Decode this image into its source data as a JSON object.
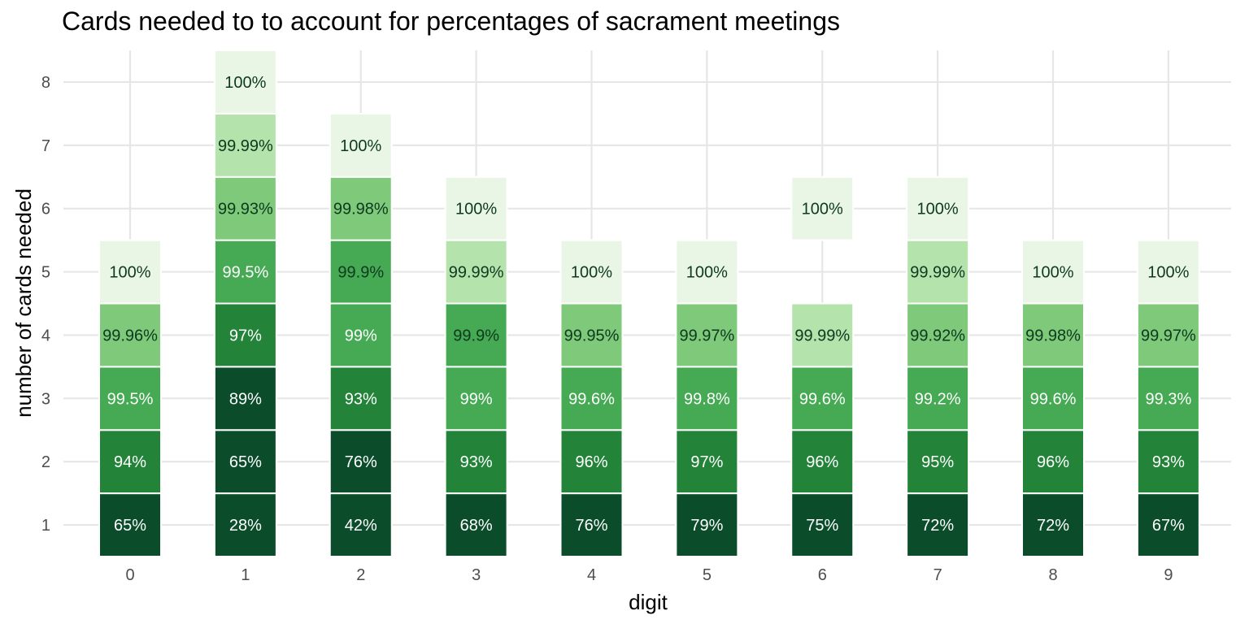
{
  "chart_data": {
    "type": "heatmap",
    "title": "Cards needed to to account for percentages of sacrament meetings",
    "xlabel": "digit",
    "ylabel": "number of cards needed",
    "x_categories": [
      "0",
      "1",
      "2",
      "3",
      "4",
      "5",
      "6",
      "7",
      "8",
      "9"
    ],
    "y_ticks": [
      1,
      2,
      3,
      4,
      5,
      6,
      7,
      8
    ],
    "ylim": [
      0.5,
      8.5
    ],
    "grid": true,
    "legend": "none",
    "colors": {
      "darkest": "#0b4d2a",
      "dark": "#238439",
      "mid": "#45aa53",
      "light": "#7ec97a",
      "lighter": "#b4e3ac",
      "lightest": "#eaf6e5",
      "text_on_dark": "#ffffff",
      "text_on_light": "#0d3a1f"
    },
    "cells": [
      {
        "digit": "0",
        "cards": 1,
        "label": "65%",
        "value": 65
      },
      {
        "digit": "0",
        "cards": 2,
        "label": "94%",
        "value": 94
      },
      {
        "digit": "0",
        "cards": 3,
        "label": "99.5%",
        "value": 99.5
      },
      {
        "digit": "0",
        "cards": 4,
        "label": "99.96%",
        "value": 99.96
      },
      {
        "digit": "0",
        "cards": 5,
        "label": "100%",
        "value": 100
      },
      {
        "digit": "1",
        "cards": 1,
        "label": "28%",
        "value": 28
      },
      {
        "digit": "1",
        "cards": 2,
        "label": "65%",
        "value": 65
      },
      {
        "digit": "1",
        "cards": 3,
        "label": "89%",
        "value": 89
      },
      {
        "digit": "1",
        "cards": 4,
        "label": "97%",
        "value": 97
      },
      {
        "digit": "1",
        "cards": 5,
        "label": "99.5%",
        "value": 99.5
      },
      {
        "digit": "1",
        "cards": 6,
        "label": "99.93%",
        "value": 99.93
      },
      {
        "digit": "1",
        "cards": 7,
        "label": "99.99%",
        "value": 99.99
      },
      {
        "digit": "1",
        "cards": 8,
        "label": "100%",
        "value": 100
      },
      {
        "digit": "2",
        "cards": 1,
        "label": "42%",
        "value": 42
      },
      {
        "digit": "2",
        "cards": 2,
        "label": "76%",
        "value": 76
      },
      {
        "digit": "2",
        "cards": 3,
        "label": "93%",
        "value": 93
      },
      {
        "digit": "2",
        "cards": 4,
        "label": "99%",
        "value": 99
      },
      {
        "digit": "2",
        "cards": 5,
        "label": "99.9%",
        "value": 99.9
      },
      {
        "digit": "2",
        "cards": 6,
        "label": "99.98%",
        "value": 99.98
      },
      {
        "digit": "2",
        "cards": 7,
        "label": "100%",
        "value": 100
      },
      {
        "digit": "3",
        "cards": 1,
        "label": "68%",
        "value": 68
      },
      {
        "digit": "3",
        "cards": 2,
        "label": "93%",
        "value": 93
      },
      {
        "digit": "3",
        "cards": 3,
        "label": "99%",
        "value": 99
      },
      {
        "digit": "3",
        "cards": 4,
        "label": "99.9%",
        "value": 99.9
      },
      {
        "digit": "3",
        "cards": 5,
        "label": "99.99%",
        "value": 99.99
      },
      {
        "digit": "3",
        "cards": 6,
        "label": "100%",
        "value": 100
      },
      {
        "digit": "4",
        "cards": 1,
        "label": "76%",
        "value": 76
      },
      {
        "digit": "4",
        "cards": 2,
        "label": "96%",
        "value": 96
      },
      {
        "digit": "4",
        "cards": 3,
        "label": "99.6%",
        "value": 99.6
      },
      {
        "digit": "4",
        "cards": 4,
        "label": "99.95%",
        "value": 99.95
      },
      {
        "digit": "4",
        "cards": 5,
        "label": "100%",
        "value": 100
      },
      {
        "digit": "5",
        "cards": 1,
        "label": "79%",
        "value": 79
      },
      {
        "digit": "5",
        "cards": 2,
        "label": "97%",
        "value": 97
      },
      {
        "digit": "5",
        "cards": 3,
        "label": "99.8%",
        "value": 99.8
      },
      {
        "digit": "5",
        "cards": 4,
        "label": "99.97%",
        "value": 99.97
      },
      {
        "digit": "5",
        "cards": 5,
        "label": "100%",
        "value": 100
      },
      {
        "digit": "6",
        "cards": 1,
        "label": "75%",
        "value": 75
      },
      {
        "digit": "6",
        "cards": 2,
        "label": "96%",
        "value": 96
      },
      {
        "digit": "6",
        "cards": 3,
        "label": "99.6%",
        "value": 99.6
      },
      {
        "digit": "6",
        "cards": 4,
        "label": "99.99%",
        "value": 99.99
      },
      {
        "digit": "6",
        "cards": 6,
        "label": "100%",
        "value": 100
      },
      {
        "digit": "7",
        "cards": 1,
        "label": "72%",
        "value": 72
      },
      {
        "digit": "7",
        "cards": 2,
        "label": "95%",
        "value": 95
      },
      {
        "digit": "7",
        "cards": 3,
        "label": "99.2%",
        "value": 99.2
      },
      {
        "digit": "7",
        "cards": 4,
        "label": "99.92%",
        "value": 99.92
      },
      {
        "digit": "7",
        "cards": 5,
        "label": "99.99%",
        "value": 99.99
      },
      {
        "digit": "7",
        "cards": 6,
        "label": "100%",
        "value": 100
      },
      {
        "digit": "8",
        "cards": 1,
        "label": "72%",
        "value": 72
      },
      {
        "digit": "8",
        "cards": 2,
        "label": "96%",
        "value": 96
      },
      {
        "digit": "8",
        "cards": 3,
        "label": "99.6%",
        "value": 99.6
      },
      {
        "digit": "8",
        "cards": 4,
        "label": "99.98%",
        "value": 99.98
      },
      {
        "digit": "8",
        "cards": 5,
        "label": "100%",
        "value": 100
      },
      {
        "digit": "9",
        "cards": 1,
        "label": "67%",
        "value": 67
      },
      {
        "digit": "9",
        "cards": 2,
        "label": "93%",
        "value": 93
      },
      {
        "digit": "9",
        "cards": 3,
        "label": "99.3%",
        "value": 99.3
      },
      {
        "digit": "9",
        "cards": 4,
        "label": "99.97%",
        "value": 99.97
      },
      {
        "digit": "9",
        "cards": 5,
        "label": "100%",
        "value": 100
      }
    ]
  }
}
